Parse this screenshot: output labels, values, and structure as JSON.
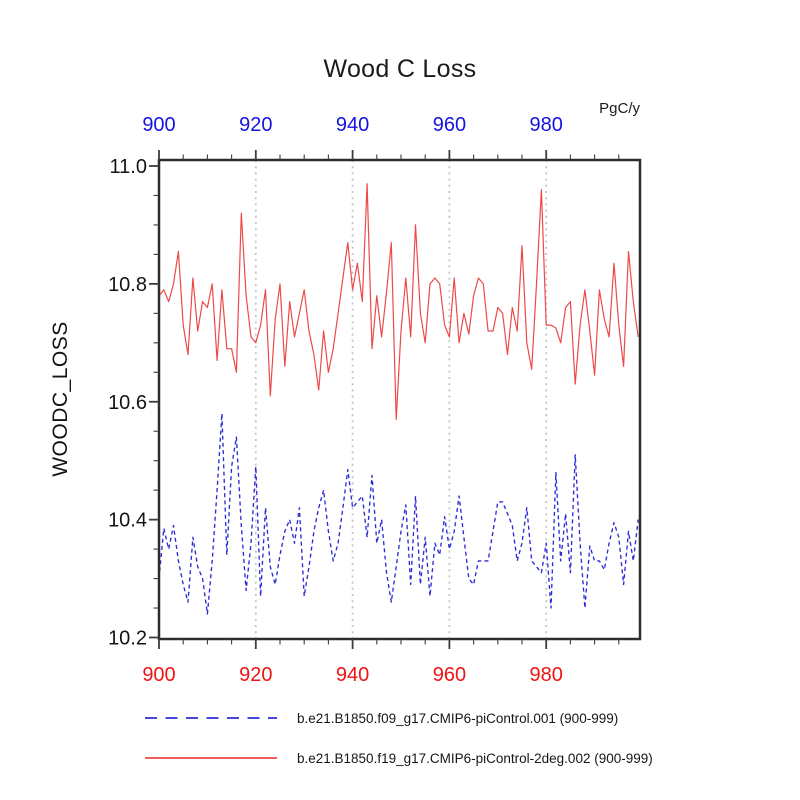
{
  "chart_data": {
    "type": "line",
    "title": "Wood C Loss",
    "units": "PgC/y",
    "ylabel": "WOODC_LOSS",
    "xlabel": "",
    "xlim": [
      900,
      999
    ],
    "ylim": [
      10.2,
      11.0
    ],
    "x_major_ticks": [
      900,
      920,
      940,
      960,
      980
    ],
    "x_minor_interval": 5,
    "y_major_ticks": [
      11.0,
      10.8,
      10.6,
      10.4,
      10.2
    ],
    "y_minor_interval": 0.05,
    "grid_x": [
      920,
      940,
      960,
      980
    ],
    "grid_style": "dotted",
    "legend_position": "below-plot",
    "colors": {
      "top_tick_labels": "#1414e0",
      "bottom_tick_labels": "#ee1414",
      "left_tick_labels": "#141414",
      "frame": "#2d2d2d",
      "ticks": "#3c3c3c",
      "gridline": "#c4c4c4"
    },
    "x": [
      900,
      901,
      902,
      903,
      904,
      905,
      906,
      907,
      908,
      909,
      910,
      911,
      912,
      913,
      914,
      915,
      916,
      917,
      918,
      919,
      920,
      921,
      922,
      923,
      924,
      925,
      926,
      927,
      928,
      929,
      930,
      931,
      932,
      933,
      934,
      935,
      936,
      937,
      938,
      939,
      940,
      941,
      942,
      943,
      944,
      945,
      946,
      947,
      948,
      949,
      950,
      951,
      952,
      953,
      954,
      955,
      956,
      957,
      958,
      959,
      960,
      961,
      962,
      963,
      964,
      965,
      966,
      967,
      968,
      969,
      970,
      971,
      972,
      973,
      974,
      975,
      976,
      977,
      978,
      979,
      980,
      981,
      982,
      983,
      984,
      985,
      986,
      987,
      988,
      989,
      990,
      991,
      992,
      993,
      994,
      995,
      996,
      997,
      998,
      999
    ],
    "series": [
      {
        "name": "b.e21.B1850.f09_g17.CMIP6-piControl.001 (900-999)",
        "color": "#2c2cd6",
        "line_style": "dashed",
        "values": [
          10.3,
          10.385,
          10.35,
          10.39,
          10.33,
          10.29,
          10.26,
          10.37,
          10.32,
          10.3,
          10.24,
          10.33,
          10.45,
          10.58,
          10.34,
          10.49,
          10.54,
          10.39,
          10.28,
          10.36,
          10.49,
          10.27,
          10.42,
          10.32,
          10.29,
          10.34,
          10.38,
          10.4,
          10.36,
          10.42,
          10.27,
          10.32,
          10.38,
          10.42,
          10.45,
          10.38,
          10.33,
          10.36,
          10.42,
          10.485,
          10.42,
          10.43,
          10.44,
          10.37,
          10.475,
          10.36,
          10.4,
          10.31,
          10.26,
          10.32,
          10.38,
          10.425,
          10.29,
          10.44,
          10.29,
          10.37,
          10.27,
          10.36,
          10.34,
          10.405,
          10.35,
          10.38,
          10.44,
          10.37,
          10.3,
          10.29,
          10.33,
          10.33,
          10.33,
          10.38,
          10.43,
          10.43,
          10.41,
          10.39,
          10.33,
          10.36,
          10.42,
          10.33,
          10.32,
          10.31,
          10.36,
          10.25,
          10.48,
          10.33,
          10.41,
          10.31,
          10.51,
          10.36,
          10.25,
          10.355,
          10.33,
          10.33,
          10.315,
          10.36,
          10.395,
          10.37,
          10.29,
          10.38,
          10.33,
          10.4
        ]
      },
      {
        "name": "b.e21.B1850.f19_g17.CMIP6-piControl-2deg.002 (900-999)",
        "color": "#ee4949",
        "line_style": "solid",
        "values": [
          10.78,
          10.79,
          10.77,
          10.8,
          10.855,
          10.73,
          10.68,
          10.81,
          10.72,
          10.77,
          10.76,
          10.8,
          10.67,
          10.79,
          10.69,
          10.69,
          10.65,
          10.92,
          10.78,
          10.71,
          10.7,
          10.73,
          10.79,
          10.61,
          10.74,
          10.8,
          10.66,
          10.77,
          10.71,
          10.75,
          10.79,
          10.72,
          10.68,
          10.62,
          10.72,
          10.65,
          10.69,
          10.75,
          10.81,
          10.87,
          10.79,
          10.835,
          10.77,
          10.97,
          10.69,
          10.78,
          10.71,
          10.785,
          10.87,
          10.57,
          10.72,
          10.81,
          10.71,
          10.9,
          10.75,
          10.7,
          10.8,
          10.81,
          10.8,
          10.73,
          10.71,
          10.81,
          10.7,
          10.75,
          10.715,
          10.78,
          10.81,
          10.8,
          10.72,
          10.72,
          10.76,
          10.75,
          10.68,
          10.76,
          10.72,
          10.865,
          10.7,
          10.655,
          10.8,
          10.96,
          10.73,
          10.73,
          10.725,
          10.7,
          10.76,
          10.77,
          10.63,
          10.73,
          10.79,
          10.72,
          10.645,
          10.79,
          10.74,
          10.71,
          10.835,
          10.73,
          10.66,
          10.855,
          10.77,
          10.71
        ]
      }
    ]
  }
}
